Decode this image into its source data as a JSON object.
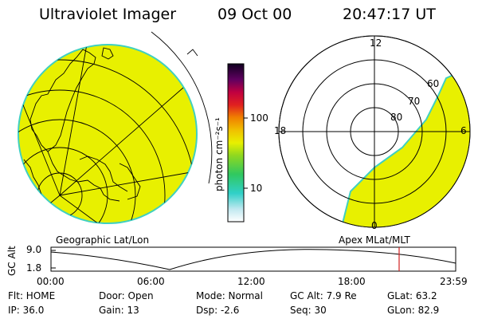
{
  "header": {
    "instrument": "Ultraviolet Imager",
    "date": "09 Oct 00",
    "time": "20:47:17 UT"
  },
  "colorbar": {
    "unit_label": "photon cm⁻²s⁻¹",
    "ticks": [
      "100",
      "10"
    ]
  },
  "panels": {
    "left_label": "Geographic Lat/Lon",
    "right_label": "Apex MLat/MLT"
  },
  "polar_plot": {
    "mlt_labels": [
      "12",
      "18",
      "6",
      "0"
    ],
    "lat_labels": [
      "60",
      "70",
      "80"
    ]
  },
  "altitude_plot": {
    "ylabel": "GC Alt",
    "y_ticks": [
      "9.0",
      "1.8"
    ],
    "x_ticks": [
      "00:00",
      "06:00",
      "12:00",
      "18:00",
      "23:59"
    ]
  },
  "status": {
    "flt": "Flt: HOME",
    "ip": "IP: 36.0",
    "door": "Door: Open",
    "gain": "Gain: 13",
    "mode": "Mode: Normal",
    "dsp": "Dsp:    -2.6",
    "gcalt": "GC Alt: 7.9 Re",
    "seq": "Seq: 30",
    "glat": "GLat:  63.2",
    "glon": "GLon:  82.9"
  },
  "colors": {
    "image_fill": "#e8f000",
    "marker": "#d02020"
  }
}
